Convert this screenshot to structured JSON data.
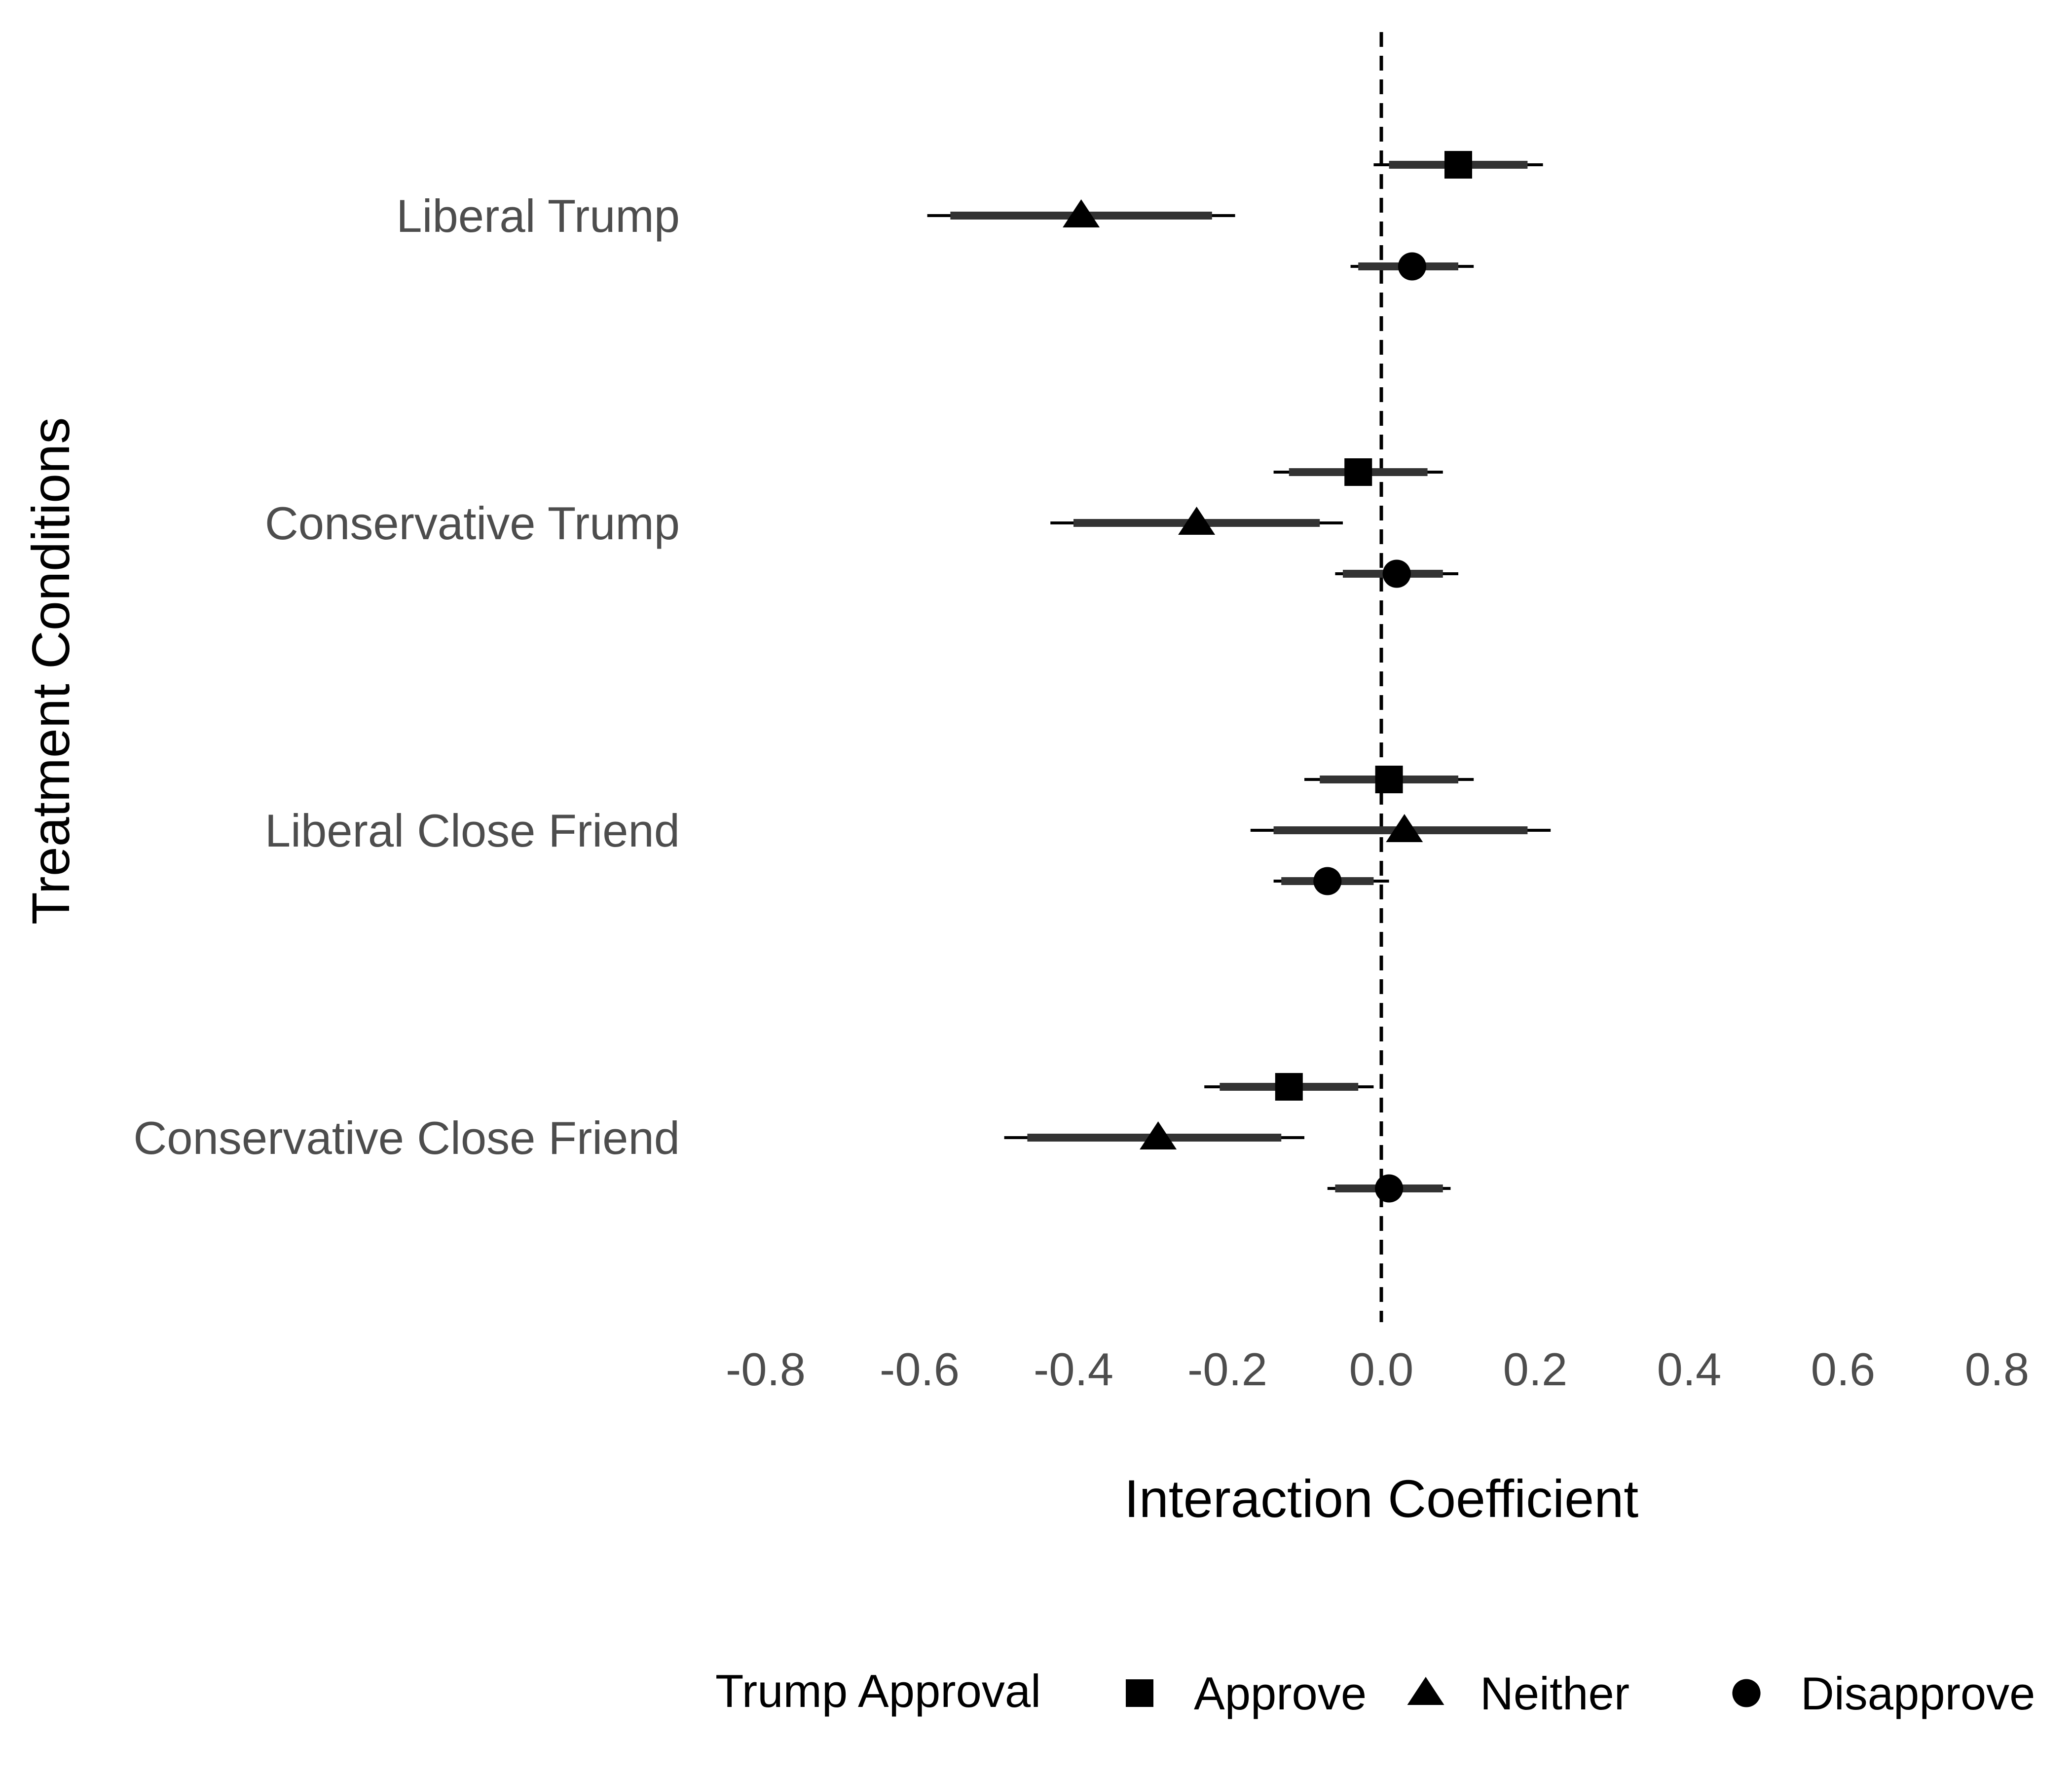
{
  "chart_data": {
    "type": "scatter",
    "subtype": "coefficient-plot",
    "xlabel": "Interaction Coefficient",
    "ylabel": "Treatment Conditions",
    "xlim": [
      -0.8,
      0.8
    ],
    "xticks": [
      "-0.8",
      "-0.6",
      "-0.4",
      "-0.2",
      "0.0",
      "0.2",
      "0.4",
      "0.6",
      "0.8"
    ],
    "categories": [
      "Liberal Trump",
      "Conservative Trump",
      "Liberal Close Friend",
      "Conservative Close Friend"
    ],
    "reference_line": {
      "x": 0,
      "style": "dashed"
    },
    "legend": {
      "title": "Trump Approval",
      "position": "bottom",
      "entries": [
        {
          "label": "Approve",
          "shape": "square"
        },
        {
          "label": "Neither",
          "shape": "triangle"
        },
        {
          "label": "Disapprove",
          "shape": "circle"
        }
      ]
    },
    "grid": false,
    "series": [
      {
        "name": "Approve",
        "shape": "square",
        "points": [
          {
            "category": "Liberal Trump",
            "estimate": 0.1,
            "ci90": [
              0.01,
              0.19
            ],
            "ci95": [
              -0.01,
              0.21
            ]
          },
          {
            "category": "Conservative Trump",
            "estimate": -0.03,
            "ci90": [
              -0.12,
              0.06
            ],
            "ci95": [
              -0.14,
              0.08
            ]
          },
          {
            "category": "Liberal Close Friend",
            "estimate": 0.01,
            "ci90": [
              -0.08,
              0.1
            ],
            "ci95": [
              -0.1,
              0.12
            ]
          },
          {
            "category": "Conservative Close Friend",
            "estimate": -0.12,
            "ci90": [
              -0.21,
              -0.03
            ],
            "ci95": [
              -0.23,
              -0.01
            ]
          }
        ]
      },
      {
        "name": "Neither",
        "shape": "triangle",
        "points": [
          {
            "category": "Liberal Trump",
            "estimate": -0.39,
            "ci90": [
              -0.56,
              -0.22
            ],
            "ci95": [
              -0.59,
              -0.19
            ]
          },
          {
            "category": "Conservative Trump",
            "estimate": -0.24,
            "ci90": [
              -0.4,
              -0.08
            ],
            "ci95": [
              -0.43,
              -0.05
            ]
          },
          {
            "category": "Liberal Close Friend",
            "estimate": 0.03,
            "ci90": [
              -0.14,
              0.19
            ],
            "ci95": [
              -0.17,
              0.22
            ]
          },
          {
            "category": "Conservative Close Friend",
            "estimate": -0.29,
            "ci90": [
              -0.46,
              -0.13
            ],
            "ci95": [
              -0.49,
              -0.1
            ]
          }
        ]
      },
      {
        "name": "Disapprove",
        "shape": "circle",
        "points": [
          {
            "category": "Liberal Trump",
            "estimate": 0.04,
            "ci90": [
              -0.03,
              0.1
            ],
            "ci95": [
              -0.04,
              0.12
            ]
          },
          {
            "category": "Conservative Trump",
            "estimate": 0.02,
            "ci90": [
              -0.05,
              0.08
            ],
            "ci95": [
              -0.06,
              0.1
            ]
          },
          {
            "category": "Liberal Close Friend",
            "estimate": -0.07,
            "ci90": [
              -0.13,
              -0.01
            ],
            "ci95": [
              -0.14,
              0.01
            ]
          },
          {
            "category": "Conservative Close Friend",
            "estimate": 0.01,
            "ci90": [
              -0.06,
              0.08
            ],
            "ci95": [
              -0.07,
              0.09
            ]
          }
        ]
      }
    ]
  }
}
